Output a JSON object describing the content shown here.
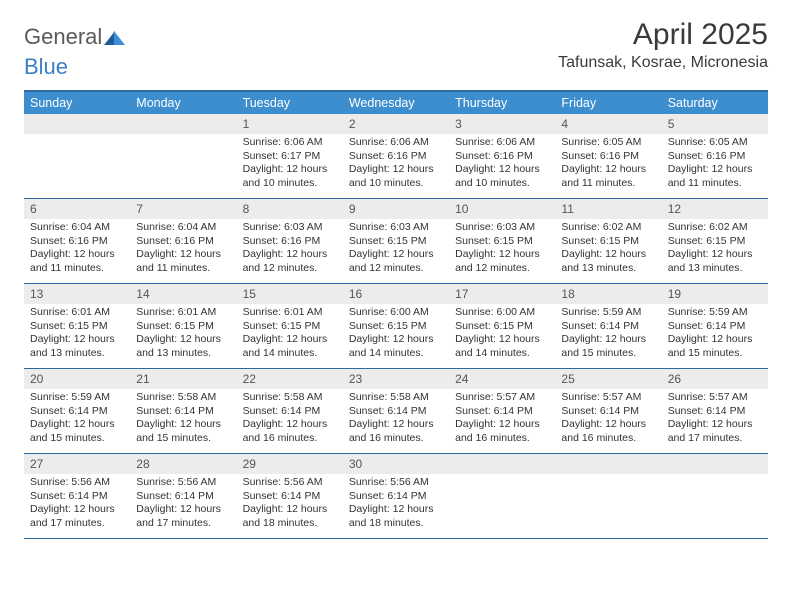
{
  "logo": {
    "part1": "General",
    "part2": "Blue"
  },
  "title": "April 2025",
  "location": "Tafunsak, Kosrae, Micronesia",
  "colors": {
    "header_bar": "#3d8ecf",
    "rule": "#2c6aa0",
    "day_num_bg": "#ececec",
    "text": "#333333",
    "title_text": "#3a3a3a",
    "logo_gray": "#5a5a5a",
    "logo_blue": "#3b7fc4"
  },
  "weekdays": [
    "Sunday",
    "Monday",
    "Tuesday",
    "Wednesday",
    "Thursday",
    "Friday",
    "Saturday"
  ],
  "weeks": [
    [
      {
        "empty": true
      },
      {
        "empty": true
      },
      {
        "num": "1",
        "sunrise": "Sunrise: 6:06 AM",
        "sunset": "Sunset: 6:17 PM",
        "day1": "Daylight: 12 hours",
        "day2": "and 10 minutes."
      },
      {
        "num": "2",
        "sunrise": "Sunrise: 6:06 AM",
        "sunset": "Sunset: 6:16 PM",
        "day1": "Daylight: 12 hours",
        "day2": "and 10 minutes."
      },
      {
        "num": "3",
        "sunrise": "Sunrise: 6:06 AM",
        "sunset": "Sunset: 6:16 PM",
        "day1": "Daylight: 12 hours",
        "day2": "and 10 minutes."
      },
      {
        "num": "4",
        "sunrise": "Sunrise: 6:05 AM",
        "sunset": "Sunset: 6:16 PM",
        "day1": "Daylight: 12 hours",
        "day2": "and 11 minutes."
      },
      {
        "num": "5",
        "sunrise": "Sunrise: 6:05 AM",
        "sunset": "Sunset: 6:16 PM",
        "day1": "Daylight: 12 hours",
        "day2": "and 11 minutes."
      }
    ],
    [
      {
        "num": "6",
        "sunrise": "Sunrise: 6:04 AM",
        "sunset": "Sunset: 6:16 PM",
        "day1": "Daylight: 12 hours",
        "day2": "and 11 minutes."
      },
      {
        "num": "7",
        "sunrise": "Sunrise: 6:04 AM",
        "sunset": "Sunset: 6:16 PM",
        "day1": "Daylight: 12 hours",
        "day2": "and 11 minutes."
      },
      {
        "num": "8",
        "sunrise": "Sunrise: 6:03 AM",
        "sunset": "Sunset: 6:16 PM",
        "day1": "Daylight: 12 hours",
        "day2": "and 12 minutes."
      },
      {
        "num": "9",
        "sunrise": "Sunrise: 6:03 AM",
        "sunset": "Sunset: 6:15 PM",
        "day1": "Daylight: 12 hours",
        "day2": "and 12 minutes."
      },
      {
        "num": "10",
        "sunrise": "Sunrise: 6:03 AM",
        "sunset": "Sunset: 6:15 PM",
        "day1": "Daylight: 12 hours",
        "day2": "and 12 minutes."
      },
      {
        "num": "11",
        "sunrise": "Sunrise: 6:02 AM",
        "sunset": "Sunset: 6:15 PM",
        "day1": "Daylight: 12 hours",
        "day2": "and 13 minutes."
      },
      {
        "num": "12",
        "sunrise": "Sunrise: 6:02 AM",
        "sunset": "Sunset: 6:15 PM",
        "day1": "Daylight: 12 hours",
        "day2": "and 13 minutes."
      }
    ],
    [
      {
        "num": "13",
        "sunrise": "Sunrise: 6:01 AM",
        "sunset": "Sunset: 6:15 PM",
        "day1": "Daylight: 12 hours",
        "day2": "and 13 minutes."
      },
      {
        "num": "14",
        "sunrise": "Sunrise: 6:01 AM",
        "sunset": "Sunset: 6:15 PM",
        "day1": "Daylight: 12 hours",
        "day2": "and 13 minutes."
      },
      {
        "num": "15",
        "sunrise": "Sunrise: 6:01 AM",
        "sunset": "Sunset: 6:15 PM",
        "day1": "Daylight: 12 hours",
        "day2": "and 14 minutes."
      },
      {
        "num": "16",
        "sunrise": "Sunrise: 6:00 AM",
        "sunset": "Sunset: 6:15 PM",
        "day1": "Daylight: 12 hours",
        "day2": "and 14 minutes."
      },
      {
        "num": "17",
        "sunrise": "Sunrise: 6:00 AM",
        "sunset": "Sunset: 6:15 PM",
        "day1": "Daylight: 12 hours",
        "day2": "and 14 minutes."
      },
      {
        "num": "18",
        "sunrise": "Sunrise: 5:59 AM",
        "sunset": "Sunset: 6:14 PM",
        "day1": "Daylight: 12 hours",
        "day2": "and 15 minutes."
      },
      {
        "num": "19",
        "sunrise": "Sunrise: 5:59 AM",
        "sunset": "Sunset: 6:14 PM",
        "day1": "Daylight: 12 hours",
        "day2": "and 15 minutes."
      }
    ],
    [
      {
        "num": "20",
        "sunrise": "Sunrise: 5:59 AM",
        "sunset": "Sunset: 6:14 PM",
        "day1": "Daylight: 12 hours",
        "day2": "and 15 minutes."
      },
      {
        "num": "21",
        "sunrise": "Sunrise: 5:58 AM",
        "sunset": "Sunset: 6:14 PM",
        "day1": "Daylight: 12 hours",
        "day2": "and 15 minutes."
      },
      {
        "num": "22",
        "sunrise": "Sunrise: 5:58 AM",
        "sunset": "Sunset: 6:14 PM",
        "day1": "Daylight: 12 hours",
        "day2": "and 16 minutes."
      },
      {
        "num": "23",
        "sunrise": "Sunrise: 5:58 AM",
        "sunset": "Sunset: 6:14 PM",
        "day1": "Daylight: 12 hours",
        "day2": "and 16 minutes."
      },
      {
        "num": "24",
        "sunrise": "Sunrise: 5:57 AM",
        "sunset": "Sunset: 6:14 PM",
        "day1": "Daylight: 12 hours",
        "day2": "and 16 minutes."
      },
      {
        "num": "25",
        "sunrise": "Sunrise: 5:57 AM",
        "sunset": "Sunset: 6:14 PM",
        "day1": "Daylight: 12 hours",
        "day2": "and 16 minutes."
      },
      {
        "num": "26",
        "sunrise": "Sunrise: 5:57 AM",
        "sunset": "Sunset: 6:14 PM",
        "day1": "Daylight: 12 hours",
        "day2": "and 17 minutes."
      }
    ],
    [
      {
        "num": "27",
        "sunrise": "Sunrise: 5:56 AM",
        "sunset": "Sunset: 6:14 PM",
        "day1": "Daylight: 12 hours",
        "day2": "and 17 minutes."
      },
      {
        "num": "28",
        "sunrise": "Sunrise: 5:56 AM",
        "sunset": "Sunset: 6:14 PM",
        "day1": "Daylight: 12 hours",
        "day2": "and 17 minutes."
      },
      {
        "num": "29",
        "sunrise": "Sunrise: 5:56 AM",
        "sunset": "Sunset: 6:14 PM",
        "day1": "Daylight: 12 hours",
        "day2": "and 18 minutes."
      },
      {
        "num": "30",
        "sunrise": "Sunrise: 5:56 AM",
        "sunset": "Sunset: 6:14 PM",
        "day1": "Daylight: 12 hours",
        "day2": "and 18 minutes."
      },
      {
        "empty": true
      },
      {
        "empty": true
      },
      {
        "empty": true
      }
    ]
  ]
}
